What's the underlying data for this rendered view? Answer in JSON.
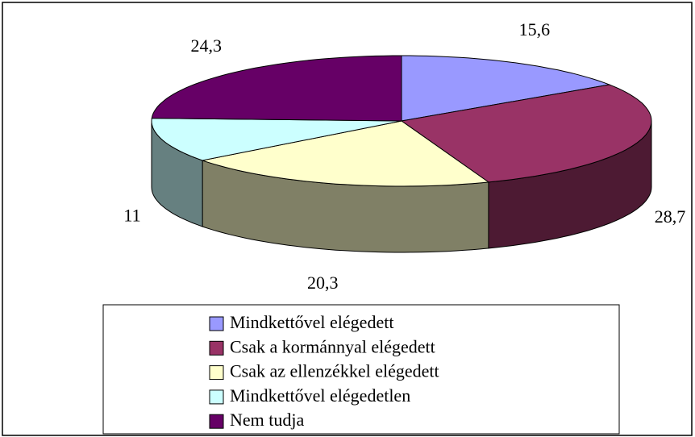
{
  "chart_data": {
    "type": "pie3d",
    "categories": [
      "Mindkettővel elégedett",
      "Csak a kormánnyal elégedett",
      "Csak az ellenzékkel elégedett",
      "Mindkettővel elégedetlen",
      "Nem tudja"
    ],
    "values": [
      15.6,
      28.7,
      20.3,
      11,
      24.3
    ],
    "value_labels": [
      "15,6",
      "28,7",
      "20,3",
      "11",
      "24,3"
    ],
    "colors": [
      "#9999ff",
      "#993366",
      "#ffffcc",
      "#ccffff",
      "#660066"
    ],
    "legend": "bottom"
  }
}
